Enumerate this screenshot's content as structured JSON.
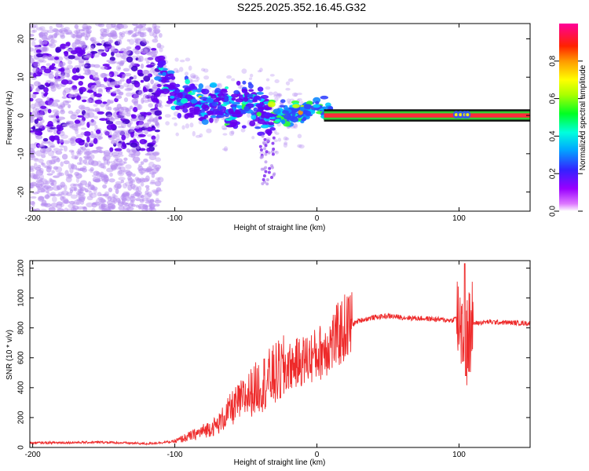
{
  "title": "S225.2025.352.16.45.G32",
  "colors": {
    "snr_line": "#ee2a2a",
    "track": "#ff2a3a",
    "track_edge": "#33cc33",
    "purple": "#6600ee",
    "lavender": "#b58cf0"
  },
  "chart_data": [
    {
      "type": "heatmap",
      "name": "spectrogram",
      "xlabel": "Height of straight line (km)",
      "ylabel": "Frequency (Hz)",
      "xlim": [
        -202,
        150
      ],
      "ylim": [
        -25,
        24
      ],
      "xticks": [
        -200,
        -100,
        0,
        100
      ],
      "xtick_labels": [
        "-200",
        "-100",
        "0",
        "100"
      ],
      "yticks": [
        -20,
        -10,
        0,
        10,
        20
      ],
      "ytick_labels": [
        "-20",
        "-10",
        "0",
        "10",
        "20"
      ],
      "dominant_frequency_track": {
        "x": [
          -110,
          -100,
          -90,
          -80,
          -70,
          -60,
          -50,
          -40,
          -30,
          -20,
          -10,
          0,
          10,
          50,
          100,
          150
        ],
        "y": [
          11,
          5,
          4,
          2.5,
          3.5,
          1.5,
          3,
          2,
          0,
          0.5,
          1,
          2,
          0.5,
          0.3,
          0.2,
          0.3
        ]
      },
      "colorbar": {
        "label": "Normalized spectral amplitude",
        "range": [
          0,
          1
        ],
        "ticks": [
          0.0,
          0.2,
          0.4,
          0.6,
          0.8
        ],
        "tick_labels": [
          "0.0",
          "0.2",
          "0.4",
          "0.6",
          "0.8"
        ],
        "colormap": "magenta-blue-cyan-green-yellow-red-pink"
      }
    },
    {
      "type": "line",
      "name": "snr",
      "xlabel": "Height of straight line (km)",
      "ylabel": "SNR (10 * v/v)",
      "xlim": [
        -202,
        150
      ],
      "ylim": [
        0,
        1250
      ],
      "xticks": [
        -200,
        -100,
        0,
        100
      ],
      "xtick_labels": [
        "-200",
        "-100",
        "0",
        "100"
      ],
      "yticks": [
        0,
        200,
        400,
        600,
        800,
        1000,
        1200
      ],
      "ytick_labels": [
        "0",
        "200",
        "400",
        "600",
        "800",
        "1000",
        "1200"
      ],
      "envelope": {
        "x": [
          -202,
          -150,
          -120,
          -100,
          -85,
          -70,
          -60,
          -50,
          -40,
          -30,
          -20,
          -10,
          0,
          10,
          20,
          30,
          40,
          50,
          60,
          80,
          95,
          100,
          105,
          110,
          120,
          150
        ],
        "y": [
          30,
          35,
          25,
          40,
          90,
          150,
          260,
          340,
          420,
          480,
          540,
          580,
          620,
          700,
          800,
          850,
          870,
          880,
          870,
          860,
          850,
          880,
          700,
          830,
          840,
          830
        ]
      },
      "annotations": [
        {
          "x": 104,
          "y": 1230,
          "note": "spike"
        },
        {
          "x": 104,
          "y": 480,
          "note": "dip"
        }
      ]
    }
  ]
}
